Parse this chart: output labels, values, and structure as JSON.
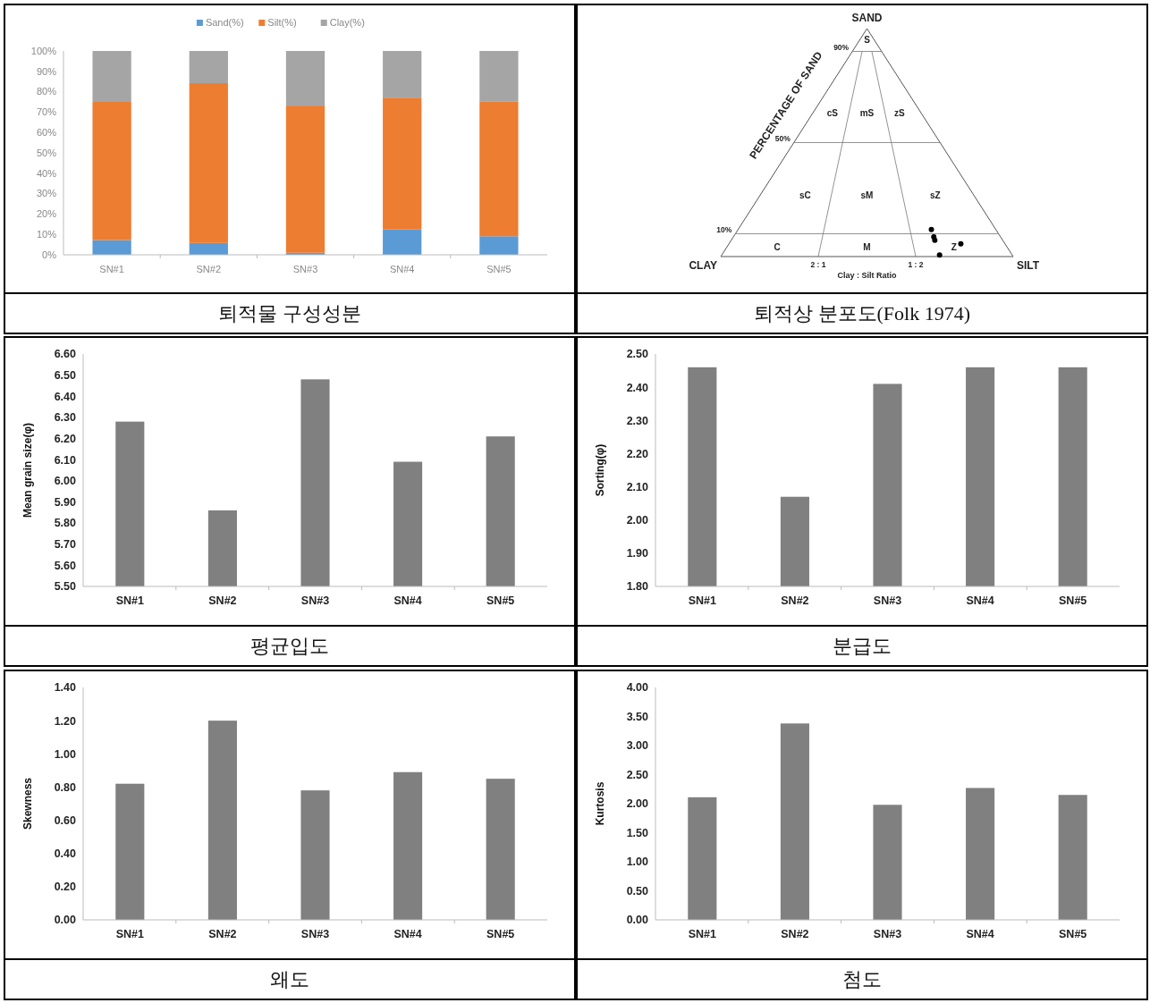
{
  "chart_data": [
    {
      "type": "bar",
      "title": "퇴적물 구성성분",
      "categories": [
        "SN#1",
        "SN#2",
        "SN#3",
        "SN#4",
        "SN#5"
      ],
      "stacked": true,
      "legend": "top",
      "series": [
        {
          "name": "Sand(%)",
          "color": "#5b9bd5",
          "values": [
            7.2,
            5.8,
            1.0,
            12.4,
            9.1
          ]
        },
        {
          "name": "Silt(%)",
          "color": "#ed7d31",
          "values": [
            67.8,
            78.4,
            72.2,
            64.7,
            66.2
          ]
        },
        {
          "name": "Clay(%)",
          "color": "#a5a5a5",
          "values": [
            25.0,
            15.8,
            26.8,
            22.9,
            24.7
          ]
        }
      ],
      "ylim": [
        0,
        100
      ],
      "yticks": [
        {
          "value": 0,
          "label": "0%"
        },
        {
          "value": 10,
          "label": "10%"
        },
        {
          "value": 20,
          "label": "20%"
        },
        {
          "value": 30,
          "label": "30%"
        },
        {
          "value": 40,
          "label": "40%"
        },
        {
          "value": 50,
          "label": "50%"
        },
        {
          "value": 60,
          "label": "60%"
        },
        {
          "value": 70,
          "label": "70%"
        },
        {
          "value": 80,
          "label": "80%"
        },
        {
          "value": 90,
          "label": "90%"
        },
        {
          "value": 100,
          "label": "100%"
        }
      ]
    },
    {
      "type": "other",
      "title": "퇴적상 분포도(Folk 1974)",
      "xlabel": "Clay : Silt Ratio",
      "ylabel": "PERCENTAGE OF SAND",
      "annotations": [
        "SAND",
        "CLAY",
        "SILT",
        "90%",
        "50%",
        "10%",
        "2 : 1",
        "1 : 2",
        "S",
        "cS",
        "mS",
        "zS",
        "sC",
        "sM",
        "sZ",
        "C",
        "M",
        "Z"
      ]
    },
    {
      "type": "bar",
      "title": "평균입도",
      "ylabel": "Mean grain size(φ)",
      "categories": [
        "SN#1",
        "SN#2",
        "SN#3",
        "SN#4",
        "SN#5"
      ],
      "values": [
        6.28,
        5.86,
        6.48,
        6.09,
        6.21
      ],
      "color": "#808080",
      "ylim": [
        5.5,
        6.6
      ],
      "yticks": [
        {
          "value": 5.5,
          "label": "5.50"
        },
        {
          "value": 5.6,
          "label": "5.60"
        },
        {
          "value": 5.7,
          "label": "5.70"
        },
        {
          "value": 5.8,
          "label": "5.80"
        },
        {
          "value": 5.9,
          "label": "5.90"
        },
        {
          "value": 6.0,
          "label": "6.00"
        },
        {
          "value": 6.1,
          "label": "6.10"
        },
        {
          "value": 6.2,
          "label": "6.20"
        },
        {
          "value": 6.3,
          "label": "6.30"
        },
        {
          "value": 6.4,
          "label": "6.40"
        },
        {
          "value": 6.5,
          "label": "6.50"
        },
        {
          "value": 6.6,
          "label": "6.60"
        }
      ]
    },
    {
      "type": "bar",
      "title": "분급도",
      "ylabel": "Sorting(φ)",
      "categories": [
        "SN#1",
        "SN#2",
        "SN#3",
        "SN#4",
        "SN#5"
      ],
      "values": [
        2.46,
        2.07,
        2.41,
        2.46,
        2.46
      ],
      "color": "#808080",
      "ylim": [
        1.8,
        2.5
      ],
      "yticks": [
        {
          "value": 1.8,
          "label": "1.80"
        },
        {
          "value": 1.9,
          "label": "1.90"
        },
        {
          "value": 2.0,
          "label": "2.00"
        },
        {
          "value": 2.1,
          "label": "2.10"
        },
        {
          "value": 2.2,
          "label": "2.20"
        },
        {
          "value": 2.3,
          "label": "2.30"
        },
        {
          "value": 2.4,
          "label": "2.40"
        },
        {
          "value": 2.5,
          "label": "2.50"
        }
      ]
    },
    {
      "type": "bar",
      "title": "왜도",
      "ylabel": "Skewness",
      "categories": [
        "SN#1",
        "SN#2",
        "SN#3",
        "SN#4",
        "SN#5"
      ],
      "values": [
        0.82,
        1.2,
        0.78,
        0.89,
        0.85
      ],
      "color": "#808080",
      "ylim": [
        0,
        1.4
      ],
      "yticks": [
        {
          "value": 0,
          "label": "0.00"
        },
        {
          "value": 0.2,
          "label": "0.20"
        },
        {
          "value": 0.4,
          "label": "0.40"
        },
        {
          "value": 0.6,
          "label": "0.60"
        },
        {
          "value": 0.8,
          "label": "0.80"
        },
        {
          "value": 1.0,
          "label": "1.00"
        },
        {
          "value": 1.2,
          "label": "1.20"
        },
        {
          "value": 1.4,
          "label": "1.40"
        }
      ]
    },
    {
      "type": "bar",
      "title": "첨도",
      "ylabel": "Kurtosis",
      "categories": [
        "SN#1",
        "SN#2",
        "SN#3",
        "SN#4",
        "SN#5"
      ],
      "values": [
        2.11,
        3.38,
        1.98,
        2.27,
        2.15
      ],
      "color": "#808080",
      "ylim": [
        0,
        4
      ],
      "yticks": [
        {
          "value": 0,
          "label": "0.00"
        },
        {
          "value": 0.5,
          "label": "0.50"
        },
        {
          "value": 1.0,
          "label": "1.00"
        },
        {
          "value": 1.5,
          "label": "1.50"
        },
        {
          "value": 2.0,
          "label": "2.00"
        },
        {
          "value": 2.5,
          "label": "2.50"
        },
        {
          "value": 3.0,
          "label": "3.00"
        },
        {
          "value": 3.5,
          "label": "3.50"
        },
        {
          "value": 4.0,
          "label": "4.00"
        }
      ]
    }
  ]
}
